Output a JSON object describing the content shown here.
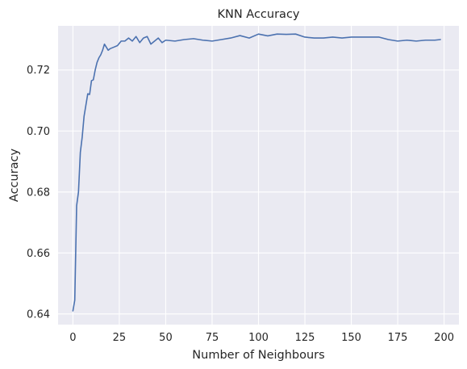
{
  "chart_data": {
    "type": "line",
    "title": "KNN Accuracy",
    "xlabel": "Number of Neighbours",
    "ylabel": "Accuracy",
    "xlim": [
      -8,
      208
    ],
    "ylim": [
      0.6365,
      0.7345
    ],
    "xticks": [
      0,
      25,
      50,
      75,
      100,
      125,
      150,
      175,
      200
    ],
    "yticks": [
      0.64,
      0.66,
      0.68,
      0.7,
      0.72
    ],
    "ytick_labels": [
      "0.64",
      "0.66",
      "0.68",
      "0.70",
      "0.72"
    ],
    "grid": true,
    "background_color": "#eaeaf2",
    "grid_color": "#ffffff",
    "series": [
      {
        "color": "#4c72b0",
        "x": [
          0,
          1,
          2,
          3,
          4,
          5,
          6,
          7,
          8,
          9,
          10,
          11,
          12,
          13,
          14,
          15,
          16,
          17,
          18,
          19,
          20,
          22,
          24,
          26,
          28,
          30,
          32,
          34,
          36,
          38,
          40,
          42,
          44,
          46,
          48,
          50,
          55,
          60,
          65,
          70,
          75,
          80,
          85,
          90,
          95,
          100,
          105,
          110,
          115,
          120,
          125,
          130,
          135,
          140,
          145,
          150,
          155,
          160,
          165,
          170,
          175,
          180,
          185,
          190,
          195,
          198
        ],
        "values": [
          0.641,
          0.6445,
          0.6755,
          0.68,
          0.693,
          0.698,
          0.7048,
          0.7085,
          0.7122,
          0.712,
          0.7165,
          0.7168,
          0.72,
          0.7225,
          0.724,
          0.725,
          0.7265,
          0.7285,
          0.7275,
          0.7265,
          0.727,
          0.7275,
          0.728,
          0.7295,
          0.7295,
          0.7305,
          0.7295,
          0.731,
          0.729,
          0.7305,
          0.731,
          0.7285,
          0.7295,
          0.7305,
          0.729,
          0.7298,
          0.7295,
          0.73,
          0.7303,
          0.7298,
          0.7295,
          0.73,
          0.7305,
          0.7313,
          0.7305,
          0.7318,
          0.7312,
          0.7318,
          0.7317,
          0.7318,
          0.7308,
          0.7305,
          0.7305,
          0.7308,
          0.7305,
          0.7308,
          0.7308,
          0.7308,
          0.7308,
          0.73,
          0.7295,
          0.7298,
          0.7295,
          0.7298,
          0.7298,
          0.73
        ]
      }
    ]
  }
}
